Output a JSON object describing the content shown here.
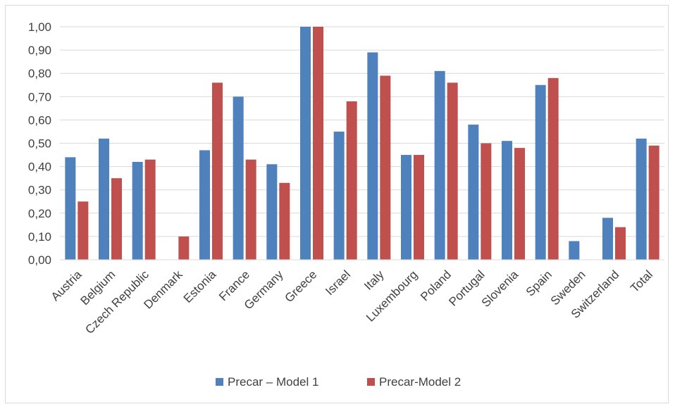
{
  "chart_data": {
    "type": "bar",
    "title": "",
    "xlabel": "",
    "ylabel": "",
    "categories": [
      "Austria",
      "Belgium",
      "Czech Republic",
      "Denmark",
      "Estonia",
      "France",
      "Germany",
      "Greece",
      "Israel",
      "Italy",
      "Luxembourg",
      "Poland",
      "Portugal",
      "Slovenia",
      "Spain",
      "Sweden",
      "Switzerland",
      "Total"
    ],
    "series": [
      {
        "name": "Precar – Model 1",
        "color": "#4f81bd",
        "values": [
          0.44,
          0.52,
          0.42,
          null,
          0.47,
          0.7,
          0.41,
          1.0,
          0.55,
          0.89,
          0.45,
          0.81,
          0.58,
          0.51,
          0.75,
          0.08,
          0.18,
          0.52
        ]
      },
      {
        "name": "Precar-Model 2",
        "color": "#c0504d",
        "values": [
          0.25,
          0.35,
          0.43,
          0.1,
          0.76,
          0.43,
          0.33,
          1.0,
          0.68,
          0.79,
          0.45,
          0.76,
          0.5,
          0.48,
          0.78,
          null,
          0.14,
          0.49
        ]
      }
    ],
    "ylim": [
      0,
      1
    ],
    "yticks": [
      "0,00",
      "0,10",
      "0,20",
      "0,30",
      "0,40",
      "0,50",
      "0,60",
      "0,70",
      "0,80",
      "0,90",
      "1,00"
    ],
    "grid": true,
    "legend_position": "bottom",
    "gridline_color": "#d9d9d9"
  }
}
